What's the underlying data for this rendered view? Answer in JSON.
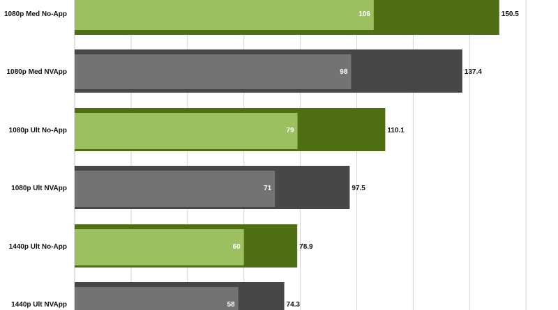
{
  "chart_data": {
    "type": "bar",
    "orientation": "horizontal",
    "categories": [
      "1080p Med No-App",
      "1080p Med NVApp",
      "1080p Ult No-App",
      "1080p Ult NVApp",
      "1440p Ult No-App",
      "1440p Ult NVApp"
    ],
    "series": [
      {
        "values": [
          150.5,
          137.4,
          110.1,
          97.5,
          78.9,
          74.3
        ]
      },
      {
        "values": [
          106,
          98,
          79,
          71,
          60,
          58
        ]
      }
    ],
    "colors": {
      "no_app_outer": "#4e7012",
      "no_app_inner": "#9cbf5f",
      "nvapp_outer": "#474747",
      "nvapp_inner": "#737373",
      "grid": "#d4d4d4"
    },
    "xlim": [
      0,
      165
    ],
    "grid": "vertical"
  }
}
